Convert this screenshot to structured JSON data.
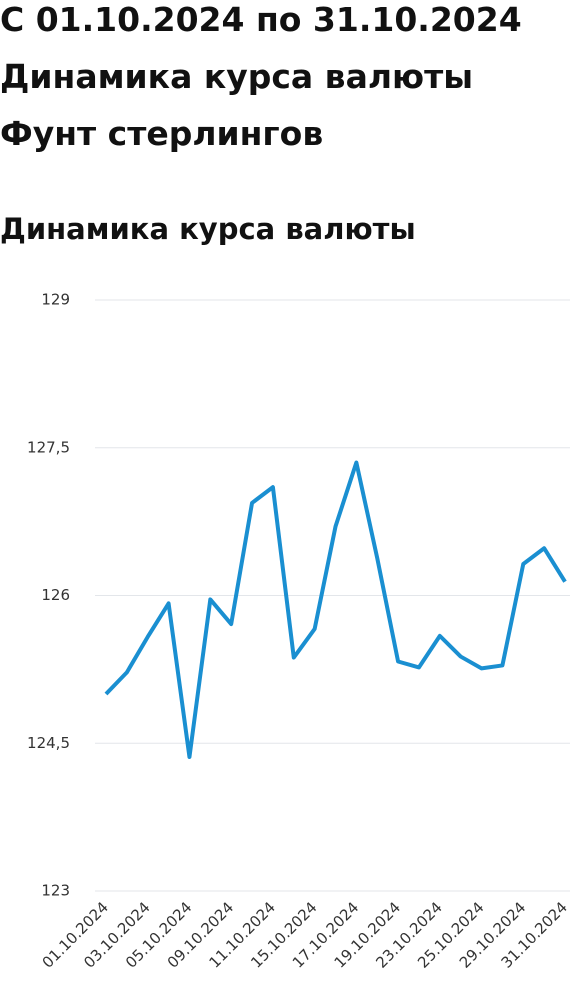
{
  "header": {
    "period": "С 01.10.2024 по 31.10.2024",
    "title": "Динамика курса валюты",
    "currency": "Фунт стерлингов"
  },
  "chart_data": {
    "type": "line",
    "title": "Динамика курса валюты",
    "categories": [
      "01.10.2024",
      null,
      "03.10.2024",
      null,
      "05.10.2024",
      null,
      "09.10.2024",
      null,
      "11.10.2024",
      null,
      "15.10.2024",
      null,
      "17.10.2024",
      null,
      "19.10.2024",
      null,
      "23.10.2024",
      null,
      "25.10.2024",
      null,
      "29.10.2024",
      null,
      "31.10.2024"
    ],
    "series": [
      {
        "name": "Фунт стерлингов",
        "color": "#1a8fd1",
        "values": [
          125.0,
          125.22,
          125.58,
          125.92,
          124.36,
          125.96,
          125.71,
          126.94,
          127.1,
          125.37,
          125.66,
          126.7,
          127.35,
          126.38,
          125.33,
          125.27,
          125.59,
          125.38,
          125.26,
          125.29,
          126.32,
          126.48,
          126.14
        ]
      }
    ],
    "ylim": [
      123,
      129
    ],
    "yticks": [
      123,
      {
        "value": 124.5,
        "label": "124,5"
      },
      126,
      {
        "value": 127.5,
        "label": "127,5"
      },
      129
    ],
    "grid": true
  }
}
